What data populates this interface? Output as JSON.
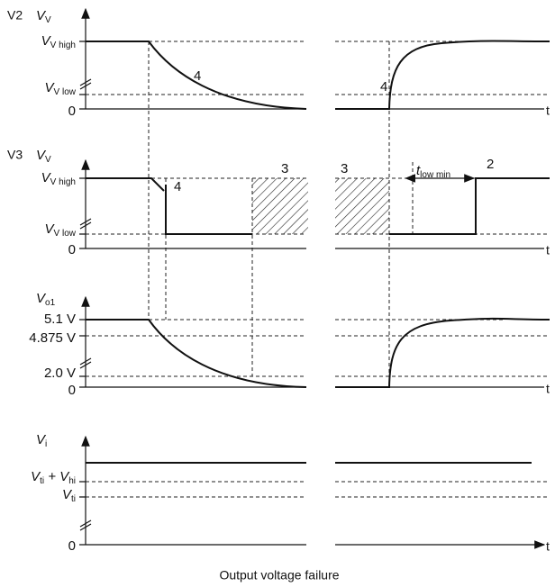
{
  "panels": [
    {
      "name": "V2",
      "axis_label": [
        "V",
        "V"
      ],
      "levels": [
        [
          "V",
          "V high"
        ],
        [
          "V",
          "V low"
        ],
        [
          "0"
        ]
      ],
      "annotations": [
        [
          "4"
        ],
        [
          "4"
        ]
      ],
      "time_label": "t"
    },
    {
      "name": "V3",
      "axis_label": [
        "V",
        "V"
      ],
      "levels": [
        [
          "V",
          "V high"
        ],
        [
          "V",
          "V low"
        ],
        [
          "0"
        ]
      ],
      "annotations": [
        [
          "4"
        ],
        [
          "3"
        ],
        [
          "3"
        ],
        [
          "t",
          "low min"
        ],
        [
          "2"
        ]
      ],
      "time_label": "t"
    },
    {
      "axis_label": [
        "V",
        "o1"
      ],
      "levels": [
        [
          "5.1 V"
        ],
        [
          "4.875 V"
        ],
        [
          "2.0 V"
        ],
        [
          "0"
        ]
      ],
      "time_label": "t"
    },
    {
      "axis_label": [
        "V",
        "i"
      ],
      "levels": [
        [
          "V",
          "ti",
          " + V",
          "hi"
        ],
        [
          "V",
          "ti"
        ],
        [
          "0"
        ]
      ],
      "time_label": "t"
    }
  ],
  "caption": "Output voltage failure"
}
